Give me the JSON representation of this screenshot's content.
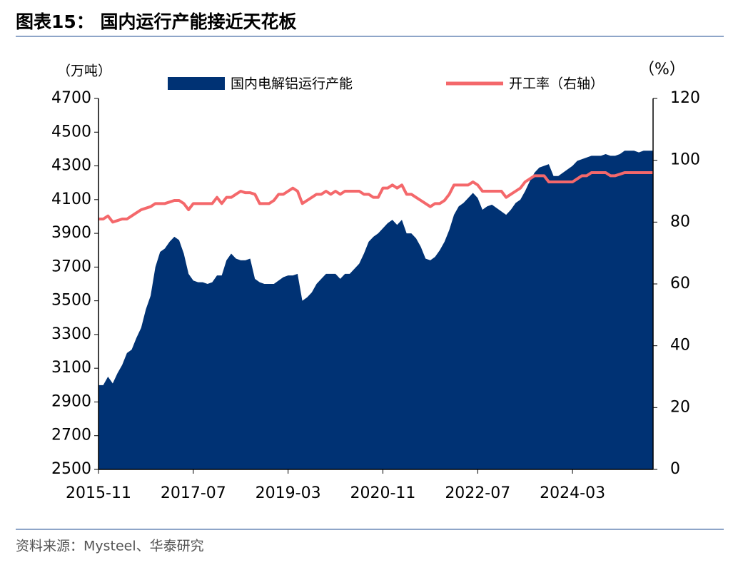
{
  "chart_data": {
    "type": "area-line",
    "title": "图表15：  国内运行产能接近天花板",
    "y_label": "（万吨）",
    "y2_label": "（%）",
    "source": "资料来源：Mysteel、华泰研究",
    "categories": [
      "2015-11",
      "2015-12",
      "2016-01",
      "2016-02",
      "2016-03",
      "2016-04",
      "2016-05",
      "2016-06",
      "2016-07",
      "2016-08",
      "2016-09",
      "2016-10",
      "2016-11",
      "2016-12",
      "2017-01",
      "2017-02",
      "2017-03",
      "2017-04",
      "2017-05",
      "2017-06",
      "2017-07",
      "2017-08",
      "2017-09",
      "2017-10",
      "2017-11",
      "2017-12",
      "2018-01",
      "2018-02",
      "2018-03",
      "2018-04",
      "2018-05",
      "2018-06",
      "2018-07",
      "2018-08",
      "2018-09",
      "2018-10",
      "2018-11",
      "2018-12",
      "2019-01",
      "2019-02",
      "2019-03",
      "2019-04",
      "2019-05",
      "2019-06",
      "2019-07",
      "2019-08",
      "2019-09",
      "2019-10",
      "2019-11",
      "2019-12",
      "2020-01",
      "2020-02",
      "2020-03",
      "2020-04",
      "2020-05",
      "2020-06",
      "2020-07",
      "2020-08",
      "2020-09",
      "2020-10",
      "2020-11",
      "2020-12",
      "2021-01",
      "2021-02",
      "2021-03",
      "2021-04",
      "2021-05",
      "2021-06",
      "2021-07",
      "2021-08",
      "2021-09",
      "2021-10",
      "2021-11",
      "2021-12",
      "2022-01",
      "2022-02",
      "2022-03",
      "2022-04",
      "2022-05",
      "2022-06",
      "2022-07",
      "2022-08",
      "2022-09",
      "2022-10",
      "2022-11",
      "2022-12",
      "2023-01",
      "2023-02",
      "2023-03",
      "2023-04",
      "2023-05",
      "2023-06",
      "2023-07",
      "2023-08",
      "2023-09",
      "2023-10",
      "2023-11",
      "2023-12",
      "2024-01",
      "2024-02",
      "2024-03",
      "2024-04",
      "2024-05",
      "2024-06",
      "2024-07",
      "2024-08",
      "2024-09",
      "2024-10",
      "2024-11",
      "2024-12",
      "2025-01",
      "2025-02",
      "2025-03",
      "2025-04",
      "2025-05",
      "2025-06",
      "2025-07",
      "2025-08"
    ],
    "xtick_indices": [
      0,
      20,
      40,
      60,
      80,
      100
    ],
    "series": [
      {
        "name": "国内电解铝运行产能",
        "color": "#003274",
        "kind": "area",
        "values": [
          3000,
          3000,
          3050,
          3010,
          3070,
          3120,
          3190,
          3210,
          3280,
          3340,
          3450,
          3530,
          3700,
          3790,
          3810,
          3850,
          3880,
          3860,
          3780,
          3660,
          3620,
          3610,
          3610,
          3600,
          3610,
          3650,
          3650,
          3740,
          3780,
          3750,
          3740,
          3740,
          3750,
          3630,
          3610,
          3600,
          3600,
          3600,
          3620,
          3640,
          3650,
          3650,
          3660,
          3500,
          3520,
          3550,
          3600,
          3630,
          3660,
          3660,
          3660,
          3630,
          3660,
          3660,
          3690,
          3720,
          3780,
          3850,
          3880,
          3900,
          3930,
          3960,
          3980,
          3950,
          3980,
          3900,
          3900,
          3870,
          3820,
          3750,
          3740,
          3760,
          3800,
          3850,
          3920,
          4010,
          4060,
          4080,
          4110,
          4140,
          4110,
          4040,
          4060,
          4070,
          4050,
          4030,
          4010,
          4040,
          4080,
          4100,
          4150,
          4210,
          4260,
          4290,
          4300,
          4310,
          4240,
          4240,
          4260,
          4280,
          4300,
          4330,
          4340,
          4350,
          4360,
          4360,
          4360,
          4370,
          4360,
          4360,
          4370,
          4390,
          4390,
          4390,
          4380,
          4390,
          4390,
          4390
        ]
      },
      {
        "name": "开工率（右轴）",
        "color": "#f4686b",
        "kind": "line",
        "axis": "y2",
        "values": [
          81,
          81,
          82,
          80,
          80.5,
          81,
          81,
          82,
          83,
          84,
          84.5,
          85,
          86,
          86,
          86,
          86.5,
          87,
          87,
          86,
          84,
          86,
          86,
          86,
          86,
          86,
          88,
          86,
          88,
          88,
          89,
          90,
          89.5,
          89.5,
          89,
          86,
          86,
          86,
          87,
          89,
          89,
          90,
          91,
          90,
          86,
          87,
          88,
          89,
          89,
          90,
          89,
          90,
          89,
          90,
          90,
          90,
          90,
          89,
          89,
          88,
          88,
          91,
          91,
          92,
          91,
          92,
          89,
          89,
          88,
          87,
          86,
          85,
          86,
          86,
          87,
          89,
          92,
          92,
          92,
          92,
          93,
          92,
          90,
          90,
          90,
          90,
          90,
          88,
          89,
          90,
          91,
          93,
          94,
          95,
          95,
          95,
          93,
          93,
          93,
          93,
          93,
          93,
          94,
          95,
          95,
          96,
          96,
          96,
          96,
          95,
          95,
          95.5,
          96,
          96,
          96,
          96,
          96,
          96,
          96
        ]
      }
    ],
    "ylim": [
      2500,
      4700
    ],
    "yticks": [
      2500,
      2700,
      2900,
      3100,
      3300,
      3500,
      3700,
      3900,
      4100,
      4300,
      4500,
      4700
    ],
    "y2lim": [
      0,
      120
    ],
    "y2ticks": [
      0,
      20,
      40,
      60,
      80,
      100,
      120
    ]
  }
}
